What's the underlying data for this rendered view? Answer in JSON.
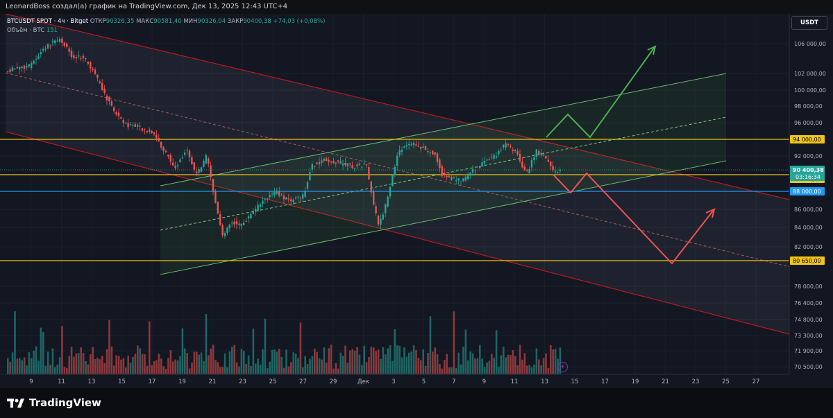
{
  "header": {
    "attribution": "LeonardBoss создал(а) график на TradingView.com, Дек 13, 2025 12:43 UTC+4"
  },
  "legend": {
    "symbol": "BTCUSDT SPOT · 4ч · Bitget",
    "open_label": "ОТКР",
    "open_value": "90326,35",
    "high_label": "МАКС",
    "high_value": "90581,40",
    "low_label": "МИН",
    "low_value": "90326,04",
    "close_label": "ЗАКР",
    "close_value": "90400,38",
    "change": "+74,03 (+0,08%)",
    "volume_label": "Объём · BTC",
    "volume_value": "151"
  },
  "currency_button": "USDT",
  "price_scale": {
    "ticks": [
      "106 000,00",
      "102 000,00",
      "100 000,00",
      "98 000,00",
      "96 000,00",
      "92 000,00",
      "86 000,00",
      "84 000,00",
      "82 000,00",
      "78 000,00",
      "76 400,00",
      "74 800,00",
      "73 300,00",
      "71 900,00",
      "70 500,00"
    ],
    "levels": [
      {
        "label": "94 000,00",
        "color": "#f0c419",
        "text_color": "#000000"
      },
      {
        "label": "90 000,00",
        "color": "#f0c419",
        "text_color": "#000000"
      },
      {
        "label": "88 000,00",
        "color": "#2196f3",
        "text_color": "#ffffff"
      },
      {
        "label": "80 650,00",
        "color": "#f0c419",
        "text_color": "#000000"
      }
    ],
    "current_price": {
      "price": "90 400,38",
      "countdown": "03:16:34",
      "color": "#26a69a"
    }
  },
  "time_axis": {
    "labels": [
      "9",
      "11",
      "13",
      "15",
      "17",
      "19",
      "21",
      "23",
      "25",
      "27",
      "29",
      "Дек",
      "3",
      "5",
      "7",
      "9",
      "11",
      "13",
      "15",
      "17",
      "19",
      "21",
      "23",
      "25",
      "27"
    ]
  },
  "colors": {
    "up": "#26a69a",
    "down": "#ef5350",
    "background": "#131722",
    "level": "#f0c419",
    "level_blue": "#2196f3"
  },
  "icons": {
    "flash": "lightning-icon",
    "logo": "tradingview-logo-icon"
  },
  "footer": {
    "logo_text": "TradingView"
  }
}
